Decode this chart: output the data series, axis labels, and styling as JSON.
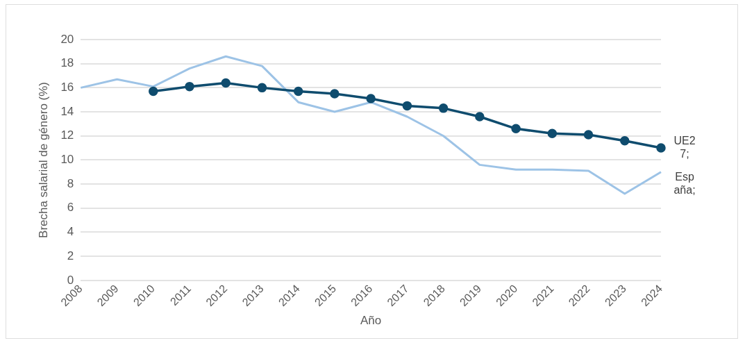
{
  "chart_data": {
    "type": "line",
    "xlabel": "Año",
    "ylabel": "Brecha salarial de género (%)",
    "categories": [
      "2008",
      "2009",
      "2010",
      "2011",
      "2012",
      "2013",
      "2014",
      "2015",
      "2016",
      "2017",
      "2018",
      "2019",
      "2020",
      "2021",
      "2022",
      "2023",
      "2024"
    ],
    "series": [
      {
        "name": "UE27;",
        "color": "#0f4c6e",
        "marker": "circle",
        "values": [
          null,
          null,
          15.7,
          16.1,
          16.4,
          16.0,
          15.7,
          15.5,
          15.1,
          14.5,
          14.3,
          13.6,
          12.6,
          12.2,
          12.1,
          11.6,
          11.0
        ]
      },
      {
        "name": "España;",
        "color": "#9dc3e6",
        "marker": "none",
        "values": [
          16.0,
          16.7,
          16.1,
          17.6,
          18.6,
          17.8,
          14.8,
          14.0,
          14.8,
          13.6,
          12.0,
          9.6,
          9.2,
          9.2,
          9.1,
          7.2,
          9.0
        ]
      }
    ],
    "ylim": [
      0,
      20
    ],
    "yticks": [
      0,
      2,
      4,
      6,
      8,
      10,
      12,
      14,
      16,
      18,
      20
    ],
    "grid": "y",
    "legend": false
  }
}
